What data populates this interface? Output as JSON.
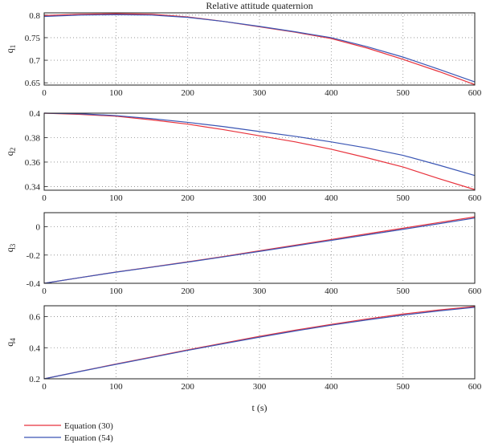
{
  "chart_data": {
    "type": "line",
    "title": "Relative attitude quaternion",
    "xlabel": "t (s)",
    "x": [
      0,
      50,
      100,
      150,
      200,
      250,
      300,
      350,
      400,
      450,
      500,
      550,
      600
    ],
    "xlim": [
      0,
      600
    ],
    "xticks": [
      "0",
      "100",
      "200",
      "300",
      "400",
      "500",
      "600"
    ],
    "grid": true,
    "legend_position": "bottom-left",
    "colors": {
      "Equation (30)": "#e8323c",
      "Equation (54)": "#3a55b4"
    },
    "subplots": [
      {
        "ylabel_base": "q",
        "ylabel_sub": "1",
        "ylim": [
          0.645,
          0.805
        ],
        "yticks": [
          0.65,
          0.7,
          0.75,
          0.8
        ],
        "ytick_labels": [
          "0.65",
          "0.7",
          "0.75",
          "0.8"
        ],
        "series": [
          {
            "name": "Equation (30)",
            "values": [
              0.799,
              0.802,
              0.803,
              0.802,
              0.796,
              0.786,
              0.774,
              0.762,
              0.748,
              0.727,
              0.702,
              0.675,
              0.646
            ]
          },
          {
            "name": "Equation (54)",
            "values": [
              0.797,
              0.8,
              0.801,
              0.8,
              0.795,
              0.786,
              0.775,
              0.763,
              0.75,
              0.73,
              0.707,
              0.68,
              0.652
            ]
          }
        ]
      },
      {
        "ylabel_base": "q",
        "ylabel_sub": "2",
        "ylim": [
          0.337,
          0.4
        ],
        "yticks": [
          0.34,
          0.36,
          0.38,
          0.4
        ],
        "ytick_labels": [
          "0.34",
          "0.36",
          "0.38",
          "0.4"
        ],
        "series": [
          {
            "name": "Equation (30)",
            "values": [
              0.4,
              0.399,
              0.3975,
              0.3945,
              0.391,
              0.3865,
              0.3815,
              0.3765,
              0.3705,
              0.3635,
              0.356,
              0.3465,
              0.3375
            ]
          },
          {
            "name": "Equation (54)",
            "values": [
              0.4,
              0.3995,
              0.398,
              0.3955,
              0.3925,
              0.389,
              0.385,
              0.381,
              0.3765,
              0.3715,
              0.3655,
              0.3575,
              0.349
            ]
          }
        ]
      },
      {
        "ylabel_base": "q",
        "ylabel_sub": "3",
        "ylim": [
          -0.4,
          0.1
        ],
        "yticks": [
          -0.4,
          -0.2,
          0
        ],
        "ytick_labels": [
          "-0.4",
          "-0.2",
          "0"
        ],
        "series": [
          {
            "name": "Equation (30)",
            "values": [
              -0.4,
              -0.36,
              -0.32,
              -0.285,
              -0.248,
              -0.21,
              -0.17,
              -0.13,
              -0.09,
              -0.05,
              -0.01,
              0.03,
              0.07
            ]
          },
          {
            "name": "Equation (54)",
            "values": [
              -0.4,
              -0.36,
              -0.321,
              -0.286,
              -0.25,
              -0.213,
              -0.174,
              -0.135,
              -0.096,
              -0.057,
              -0.018,
              0.022,
              0.062
            ]
          }
        ]
      },
      {
        "ylabel_base": "q",
        "ylabel_sub": "4",
        "ylim": [
          0.2,
          0.67
        ],
        "yticks": [
          0.2,
          0.4,
          0.6
        ],
        "ytick_labels": [
          "0.2",
          "0.4",
          "0.6"
        ],
        "series": [
          {
            "name": "Equation (30)",
            "values": [
              0.2,
              0.248,
              0.295,
              0.34,
              0.386,
              0.43,
              0.473,
              0.513,
              0.55,
              0.585,
              0.617,
              0.643,
              0.665
            ]
          },
          {
            "name": "Equation (54)",
            "values": [
              0.2,
              0.247,
              0.293,
              0.338,
              0.383,
              0.426,
              0.468,
              0.508,
              0.545,
              0.579,
              0.61,
              0.637,
              0.66
            ]
          }
        ]
      }
    ]
  }
}
